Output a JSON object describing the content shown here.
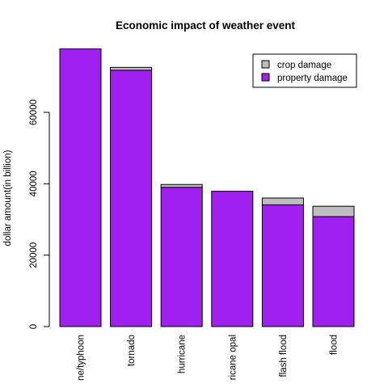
{
  "chart_data": {
    "type": "bar",
    "stacked": true,
    "title": "Economic impact of weather event",
    "xlabel": "",
    "ylabel": "dollar amount(in billion)",
    "ylim": [
      0,
      85000
    ],
    "yticks": [
      0,
      20000,
      40000,
      60000
    ],
    "y_tick_labels": [
      "0",
      "20000",
      "40000",
      "60000"
    ],
    "categories": [
      "ne/typhoon",
      "tornado",
      "hurricane",
      "ricane opal",
      "flash flood",
      "flood"
    ],
    "series": [
      {
        "name": "property damage",
        "color": "#a020f0",
        "values": [
          77800,
          71800,
          39000,
          37900,
          34100,
          30800
        ]
      },
      {
        "name": "crop damage",
        "color": "#bebebe",
        "values": [
          0,
          800,
          800,
          0,
          1900,
          2900
        ]
      }
    ],
    "legend": {
      "position": "top-right",
      "entries": [
        {
          "label": "crop damage",
          "color": "#bebebe"
        },
        {
          "label": "property damage",
          "color": "#a020f0"
        }
      ]
    },
    "grid": false
  }
}
